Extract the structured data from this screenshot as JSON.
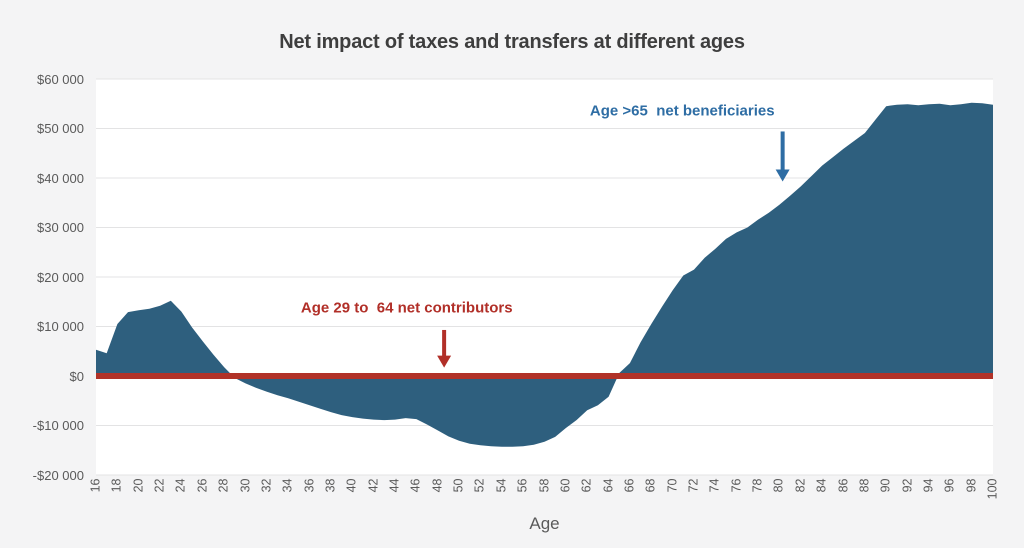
{
  "title": "Net impact of taxes and transfers at different ages",
  "colors": {
    "background": "#F4F4F5",
    "plot_background": "#FFFFFF",
    "gridline": "#E3E3E4",
    "area_fill": "#2E5F7E",
    "zero_line": "#B13228",
    "annotation_red": "#B12F28",
    "annotation_blue": "#2E6DA4",
    "title_text": "#3E3E3E",
    "axis_text": "#5A5A5A"
  },
  "chart_data": {
    "type": "area",
    "title": "Net impact of taxes and transfers at different ages",
    "xlabel": "Age",
    "ylabel": "",
    "grid": "horizontal",
    "legend": "none",
    "x_start": 16,
    "x_end": 100,
    "x_step": 1,
    "ylim": [
      -20000,
      60000
    ],
    "ytick_step": 10000,
    "ytick_labels": [
      "$60 000",
      "$50 000",
      "$40 000",
      "$30 000",
      "$20 000",
      "$10 000",
      "$0",
      "-$10 000",
      "-$20 000"
    ],
    "xtick_labels": [
      "16",
      "18",
      "20",
      "22",
      "24",
      "26",
      "28",
      "30",
      "32",
      "34",
      "36",
      "38",
      "40",
      "42",
      "44",
      "46",
      "48",
      "50",
      "52",
      "54",
      "56",
      "58",
      "60",
      "62",
      "64",
      "66",
      "68",
      "70",
      "72",
      "74",
      "76",
      "78",
      "80",
      "82",
      "84",
      "86",
      "88",
      "90",
      "92",
      "94",
      "96",
      "98",
      "100"
    ],
    "values": [
      5300,
      4600,
      10500,
      12900,
      13300,
      13600,
      14200,
      15200,
      13000,
      9800,
      7000,
      4300,
      1800,
      -400,
      -1500,
      -2400,
      -3200,
      -3900,
      -4500,
      -5200,
      -5900,
      -6600,
      -7300,
      -7900,
      -8300,
      -8600,
      -8800,
      -8900,
      -8800,
      -8500,
      -8700,
      -9800,
      -11000,
      -12200,
      -13100,
      -13700,
      -14000,
      -14200,
      -14300,
      -14300,
      -14200,
      -13900,
      -13300,
      -12300,
      -10500,
      -8900,
      -6900,
      -5900,
      -4200,
      600,
      2600,
      6800,
      10500,
      14000,
      17300,
      20300,
      21500,
      23900,
      25700,
      27700,
      29000,
      30000,
      31600,
      33000,
      34600,
      36400,
      38300,
      40400,
      42500,
      44200,
      45900,
      47500,
      49100,
      51800,
      54500,
      54800,
      54900,
      54700,
      54900,
      55000,
      54700,
      54900,
      55200,
      55100,
      54800
    ],
    "zero_line": {
      "value": 0,
      "thickness": 6
    },
    "annotations": [
      {
        "id": "contributors",
        "text": "Age 29 to  64 net contributors",
        "color": "#B12F28",
        "text_age": 45.1,
        "text_value": 13700,
        "arrow_age": 48.6,
        "arrow_from_value": 9300,
        "arrow_to_value": 1700
      },
      {
        "id": "beneficiaries",
        "text": "Age >65  net beneficiaries",
        "color": "#2E6DA4",
        "text_age": 70.9,
        "text_value": 53500,
        "arrow_age": 80.3,
        "arrow_from_value": 49400,
        "arrow_to_value": 39300
      }
    ]
  }
}
